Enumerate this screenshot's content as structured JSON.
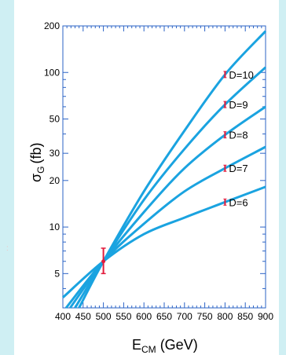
{
  "chart_data": {
    "type": "line",
    "xlabel_main": "E",
    "xlabel_sub": "CM",
    "xlabel_unit": " (GeV)",
    "ylabel_main": "σ",
    "ylabel_sub": "G",
    "ylabel_unit": "(fb)",
    "xlim": [
      400,
      900
    ],
    "ylim": [
      3,
      200
    ],
    "yscale": "log",
    "xticks": [
      400,
      450,
      500,
      550,
      600,
      650,
      700,
      750,
      800,
      850,
      900
    ],
    "yticks": [
      {
        "value": 5,
        "label": "5"
      },
      {
        "value": 10,
        "label": "10"
      },
      {
        "value": 20,
        "label": "20"
      },
      {
        "value": 30,
        "label": "30"
      },
      {
        "value": 50,
        "label": "50"
      },
      {
        "value": 100,
        "label": "100"
      },
      {
        "value": 200,
        "label": "200"
      }
    ],
    "line_color": "#1aa3e0",
    "marker_color": "#e21b3c",
    "series": [
      {
        "name": "D=10",
        "points": [
          [
            440,
            3
          ],
          [
            500,
            6
          ],
          [
            600,
            17
          ],
          [
            700,
            42
          ],
          [
            800,
            97
          ],
          [
            900,
            185
          ]
        ],
        "marker": [
          800,
          97
        ]
      },
      {
        "name": "D=9",
        "points": [
          [
            430,
            3
          ],
          [
            500,
            6
          ],
          [
            600,
            15
          ],
          [
            700,
            32
          ],
          [
            800,
            62
          ],
          [
            900,
            108
          ]
        ],
        "marker": [
          800,
          62
        ]
      },
      {
        "name": "D=8",
        "points": [
          [
            418,
            3
          ],
          [
            500,
            6
          ],
          [
            600,
            12.5
          ],
          [
            700,
            24
          ],
          [
            800,
            39.5
          ],
          [
            900,
            60
          ]
        ],
        "marker": [
          800,
          39.5
        ]
      },
      {
        "name": "D=7",
        "points": [
          [
            408,
            3
          ],
          [
            500,
            6
          ],
          [
            600,
            10.5
          ],
          [
            700,
            17
          ],
          [
            800,
            24
          ],
          [
            900,
            33
          ]
        ],
        "marker": [
          800,
          24
        ]
      },
      {
        "name": "D=6",
        "points": [
          [
            400,
            3.5
          ],
          [
            500,
            6
          ],
          [
            600,
            9
          ],
          [
            700,
            11.5
          ],
          [
            800,
            14.5
          ],
          [
            900,
            18.2
          ]
        ],
        "marker": [
          800,
          14.5
        ]
      }
    ],
    "reference_point": {
      "x": 500,
      "y": 6,
      "err_low": 5,
      "err_high": 7.3
    }
  }
}
